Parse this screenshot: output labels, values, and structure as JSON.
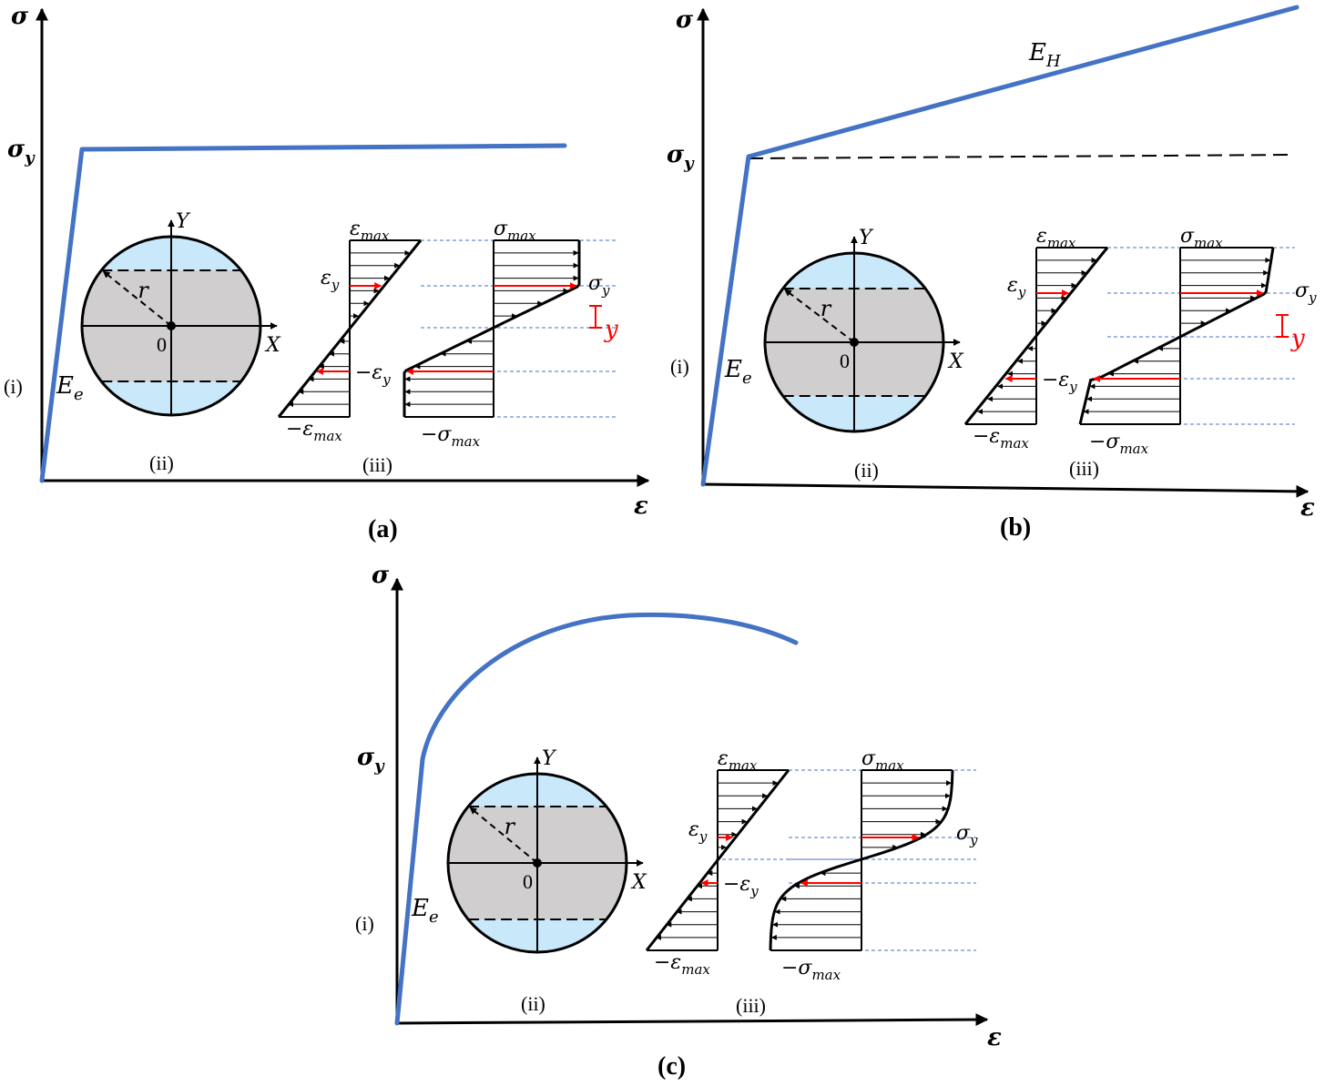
{
  "labels": {
    "sigma": "σ",
    "epsilon": "ε",
    "sigma_y": "σ",
    "sigma_y_sub": "y",
    "E_e": "E",
    "E_e_sub": "e",
    "E_H": "E",
    "E_H_sub": "H",
    "Y": "Y",
    "X": "X",
    "r": "r",
    "origin": "0",
    "eps_max": "ε",
    "eps_max_sub": "max",
    "neg_eps_max": "−ε",
    "eps_y": "ε",
    "neg_eps_y": "−ε",
    "y_sub": "y",
    "sig_max": "σ",
    "sig_max_sub": "max",
    "neg_sig_max": "−σ",
    "red_y": "y",
    "num_i": "(i)",
    "num_ii": "(ii)",
    "num_iii": "(iii)"
  },
  "panels": [
    {
      "caption": "(a)",
      "model": "elastic-perfectly-plastic"
    },
    {
      "caption": "(b)",
      "model": "linear-hardening"
    },
    {
      "caption": "(c)",
      "model": "nonlinear-hardening"
    }
  ],
  "colors": {
    "curve": "#4472c4",
    "guide": "#4472c4",
    "red": "#ff0000",
    "cap": "#c9e8fa",
    "core": "#d0cece"
  }
}
